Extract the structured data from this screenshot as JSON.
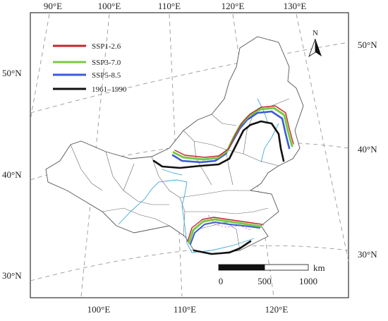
{
  "map": {
    "top_longitudes": [
      "90°E",
      "100°E",
      "110°E",
      "120°E",
      "130°E"
    ],
    "bottom_longitudes": [
      "100°E",
      "110°E",
      "120°E"
    ],
    "left_latitudes": [
      "50°N",
      "40°N",
      "30°N"
    ],
    "right_latitudes": [
      "50°N",
      "40°N",
      "30°N"
    ],
    "north_label": "N",
    "legend": [
      {
        "label": "SSP1-2.6",
        "color": "#c0282c"
      },
      {
        "label": "SSP3-7.0",
        "color": "#7ac943"
      },
      {
        "label": "SSP5-8.5",
        "color": "#3b5bd6"
      },
      {
        "label": "1961–1990",
        "color": "#111111"
      }
    ],
    "scale_bar": {
      "unit": "km",
      "ticks": [
        "0",
        "500",
        "1000"
      ]
    },
    "colors": {
      "frame": "#333333",
      "graticule": "#999999",
      "boundary": "#555555",
      "river": "#3fa9d8"
    }
  }
}
